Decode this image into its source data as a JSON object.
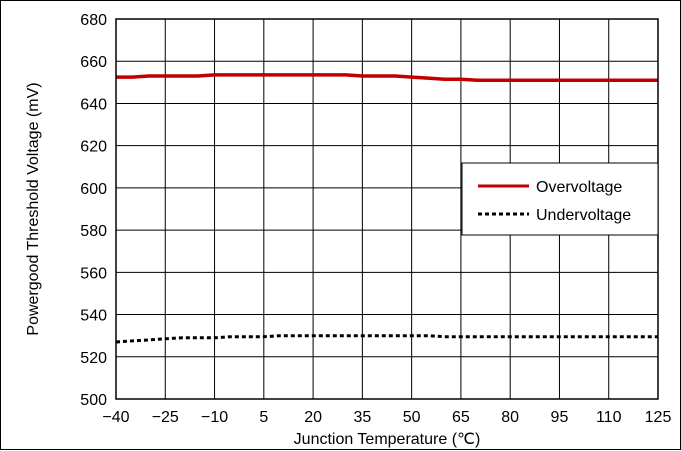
{
  "chart_data": {
    "type": "line",
    "xlabel": "Junction Temperature (℃)",
    "ylabel": "Powergood Threshold Voltage (mV)",
    "xlim": [
      -40,
      125
    ],
    "ylim": [
      500,
      680
    ],
    "xticks": [
      -40,
      -25,
      -10,
      5,
      20,
      35,
      50,
      65,
      80,
      95,
      110,
      125
    ],
    "xtick_labels": [
      "−40",
      "−25",
      "−10",
      "5",
      "20",
      "35",
      "50",
      "65",
      "80",
      "95",
      "110",
      "125"
    ],
    "yticks": [
      500,
      520,
      540,
      560,
      580,
      600,
      620,
      640,
      660,
      680
    ],
    "ytick_labels": [
      "500",
      "520",
      "540",
      "560",
      "580",
      "600",
      "620",
      "640",
      "660",
      "680"
    ],
    "grid": true,
    "legend_position": "right",
    "series": [
      {
        "name": "Overvoltage",
        "color": "#c00000",
        "style": "solid",
        "x": [
          -40,
          -35,
          -30,
          -25,
          -20,
          -15,
          -10,
          -5,
          0,
          5,
          10,
          15,
          20,
          25,
          30,
          35,
          40,
          45,
          50,
          55,
          60,
          65,
          70,
          75,
          80,
          85,
          90,
          95,
          100,
          105,
          110,
          115,
          120,
          125
        ],
        "values": [
          652.5,
          652.5,
          653,
          653,
          653,
          653,
          653.5,
          653.5,
          653.5,
          653.5,
          653.5,
          653.5,
          653.5,
          653.5,
          653.5,
          653,
          653,
          653,
          652.5,
          652,
          651.5,
          651.5,
          651,
          651,
          651,
          651,
          651,
          651,
          651,
          651,
          651,
          651,
          651,
          651
        ]
      },
      {
        "name": "Undervoltage",
        "color": "#000000",
        "style": "dashed",
        "x": [
          -40,
          -35,
          -30,
          -25,
          -20,
          -15,
          -10,
          -5,
          0,
          5,
          10,
          15,
          20,
          25,
          30,
          35,
          40,
          45,
          50,
          55,
          60,
          65,
          70,
          75,
          80,
          85,
          90,
          95,
          100,
          105,
          110,
          115,
          120,
          125
        ],
        "values": [
          527,
          527.5,
          528,
          528.5,
          529,
          529,
          529,
          529.5,
          529.5,
          529.5,
          530,
          530,
          530,
          530,
          530,
          530,
          530,
          530,
          530,
          530,
          529.5,
          529.5,
          529.5,
          529.5,
          529.5,
          529.5,
          529.5,
          529.5,
          529.5,
          529.5,
          529.5,
          529.5,
          529.5,
          529.5
        ]
      }
    ]
  }
}
